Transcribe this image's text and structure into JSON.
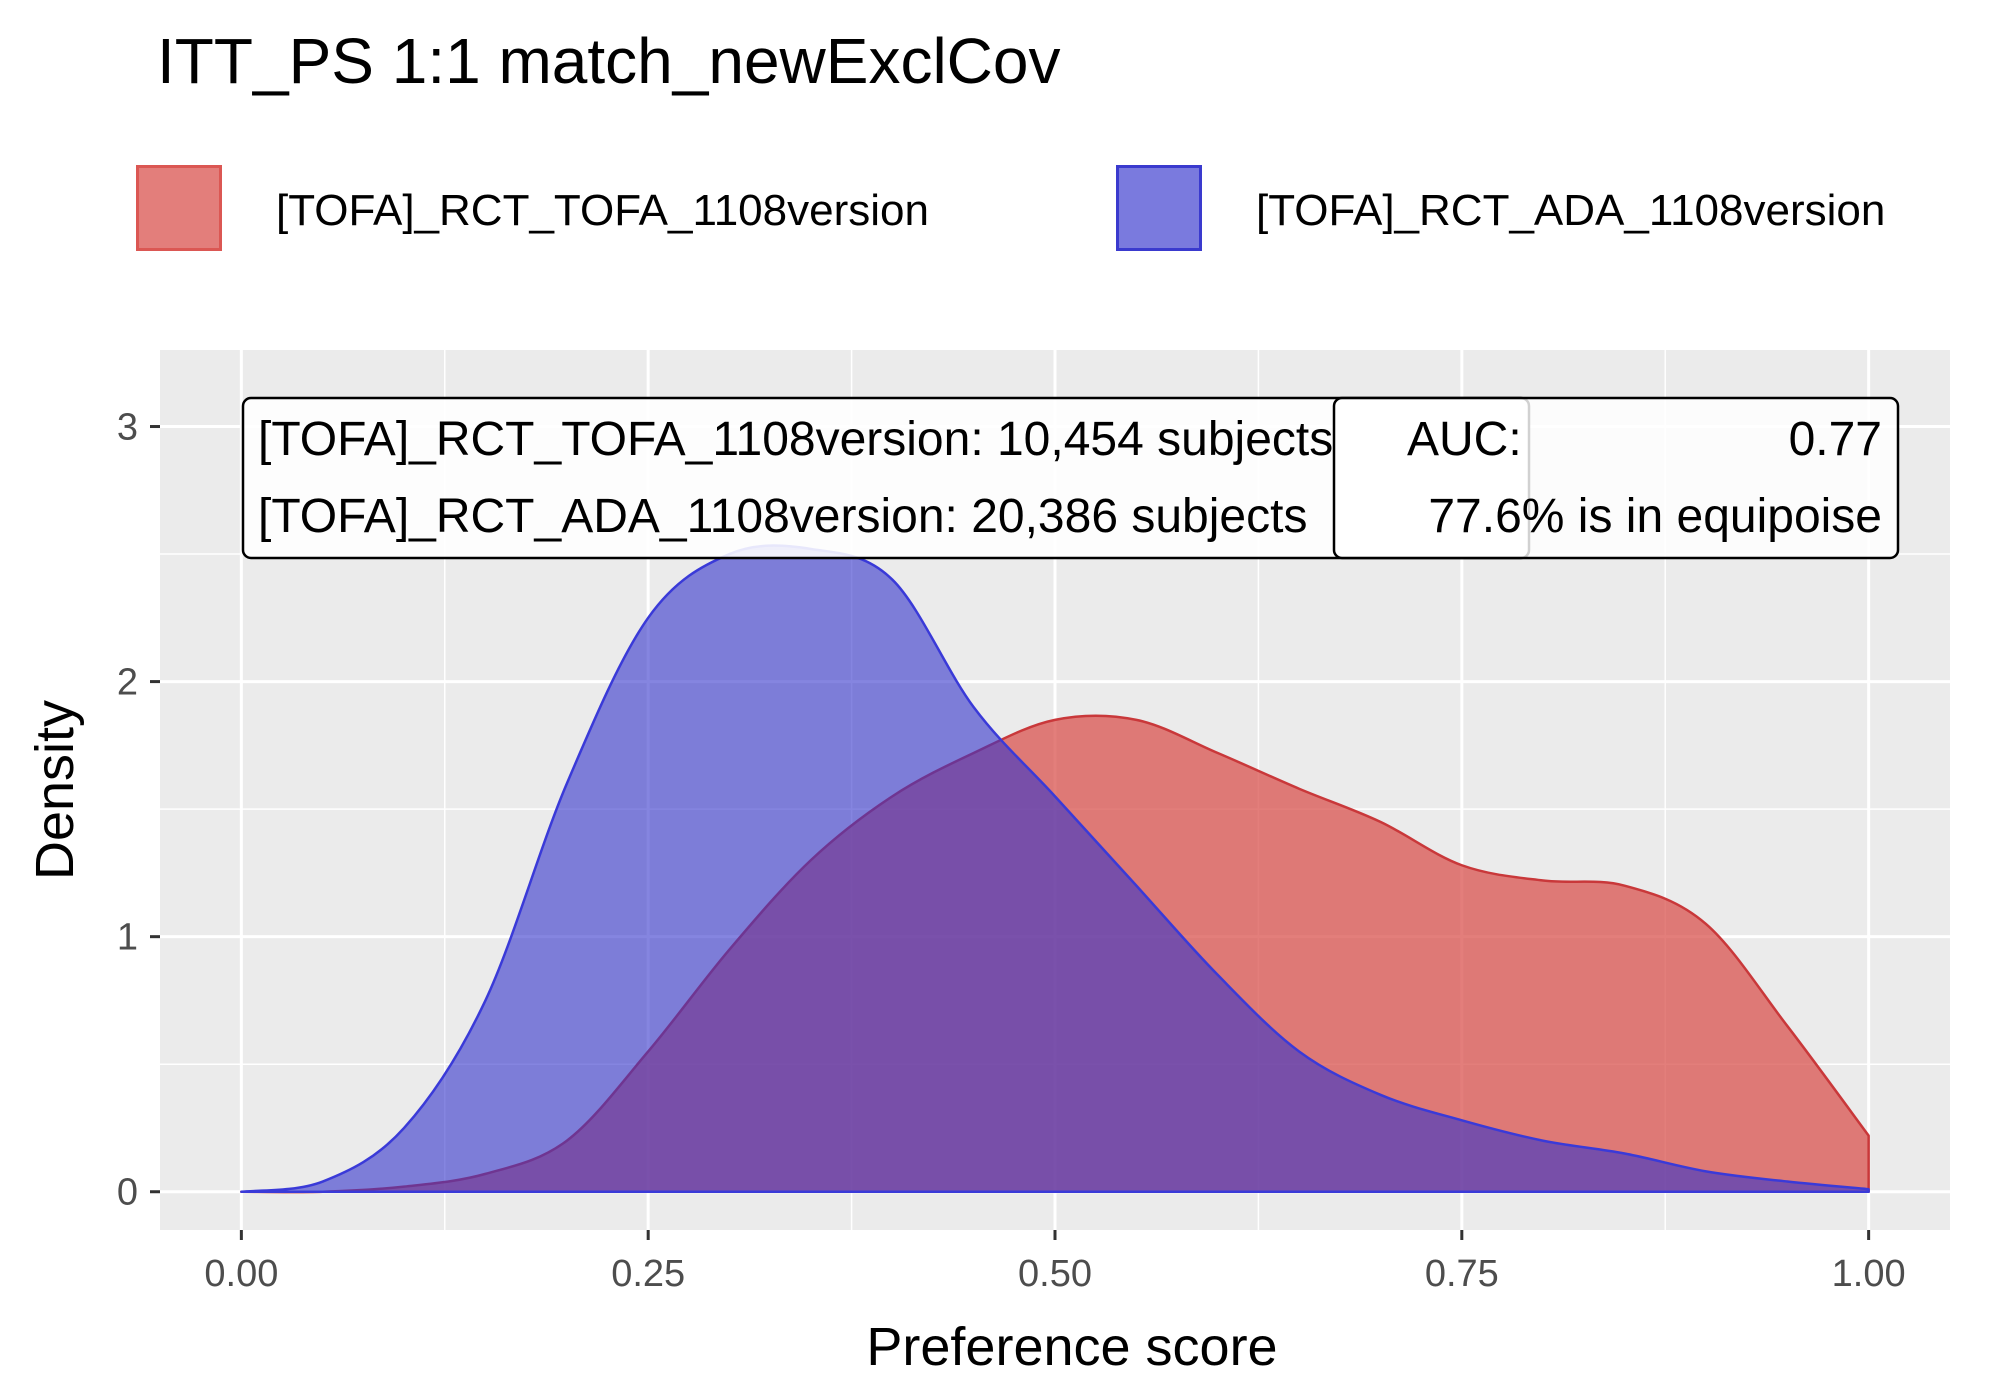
{
  "chart_data": {
    "type": "area",
    "title": "ITT_PS 1:1 match_newExclCov",
    "xlabel": "Preference score",
    "ylabel": "Density",
    "xlim": [
      -0.05,
      1.05
    ],
    "ylim": [
      -0.15,
      3.3
    ],
    "x_ticks": [
      0.0,
      0.25,
      0.5,
      0.75,
      1.0
    ],
    "x_tick_labels": [
      "0.00",
      "0.25",
      "0.50",
      "0.75",
      "1.00"
    ],
    "y_ticks": [
      0,
      1,
      2,
      3
    ],
    "y_tick_labels": [
      "0",
      "1",
      "2",
      "3"
    ],
    "grid": true,
    "legend_position": "top",
    "series": [
      {
        "name": "[TOFA]_RCT_TOFA_1108version",
        "color": "#d9534f",
        "points": [
          [
            0.0,
            0.0
          ],
          [
            0.05,
            0.0
          ],
          [
            0.1,
            0.02
          ],
          [
            0.15,
            0.07
          ],
          [
            0.2,
            0.2
          ],
          [
            0.25,
            0.55
          ],
          [
            0.3,
            0.95
          ],
          [
            0.35,
            1.3
          ],
          [
            0.4,
            1.55
          ],
          [
            0.45,
            1.72
          ],
          [
            0.5,
            1.85
          ],
          [
            0.55,
            1.85
          ],
          [
            0.6,
            1.72
          ],
          [
            0.65,
            1.58
          ],
          [
            0.7,
            1.45
          ],
          [
            0.75,
            1.28
          ],
          [
            0.8,
            1.22
          ],
          [
            0.85,
            1.2
          ],
          [
            0.9,
            1.05
          ],
          [
            0.95,
            0.65
          ],
          [
            1.0,
            0.22
          ]
        ]
      },
      {
        "name": "[TOFA]_RCT_ADA_1108version",
        "color": "#3333cc",
        "points": [
          [
            0.0,
            0.0
          ],
          [
            0.05,
            0.04
          ],
          [
            0.1,
            0.25
          ],
          [
            0.15,
            0.75
          ],
          [
            0.2,
            1.6
          ],
          [
            0.25,
            2.25
          ],
          [
            0.3,
            2.5
          ],
          [
            0.35,
            2.52
          ],
          [
            0.4,
            2.4
          ],
          [
            0.45,
            1.9
          ],
          [
            0.5,
            1.55
          ],
          [
            0.55,
            1.2
          ],
          [
            0.6,
            0.85
          ],
          [
            0.65,
            0.55
          ],
          [
            0.7,
            0.38
          ],
          [
            0.75,
            0.28
          ],
          [
            0.8,
            0.2
          ],
          [
            0.85,
            0.15
          ],
          [
            0.9,
            0.08
          ],
          [
            0.95,
            0.04
          ],
          [
            1.0,
            0.01
          ]
        ]
      }
    ],
    "annotations": {
      "subjects_lines": [
        "[TOFA]_RCT_TOFA_1108version: 10,454 subjects",
        "[TOFA]_RCT_ADA_1108version: 20,386 subjects"
      ],
      "auc_label": "AUC:",
      "auc_value": "0.77",
      "equipoise": "77.6% is in equipoise"
    }
  }
}
